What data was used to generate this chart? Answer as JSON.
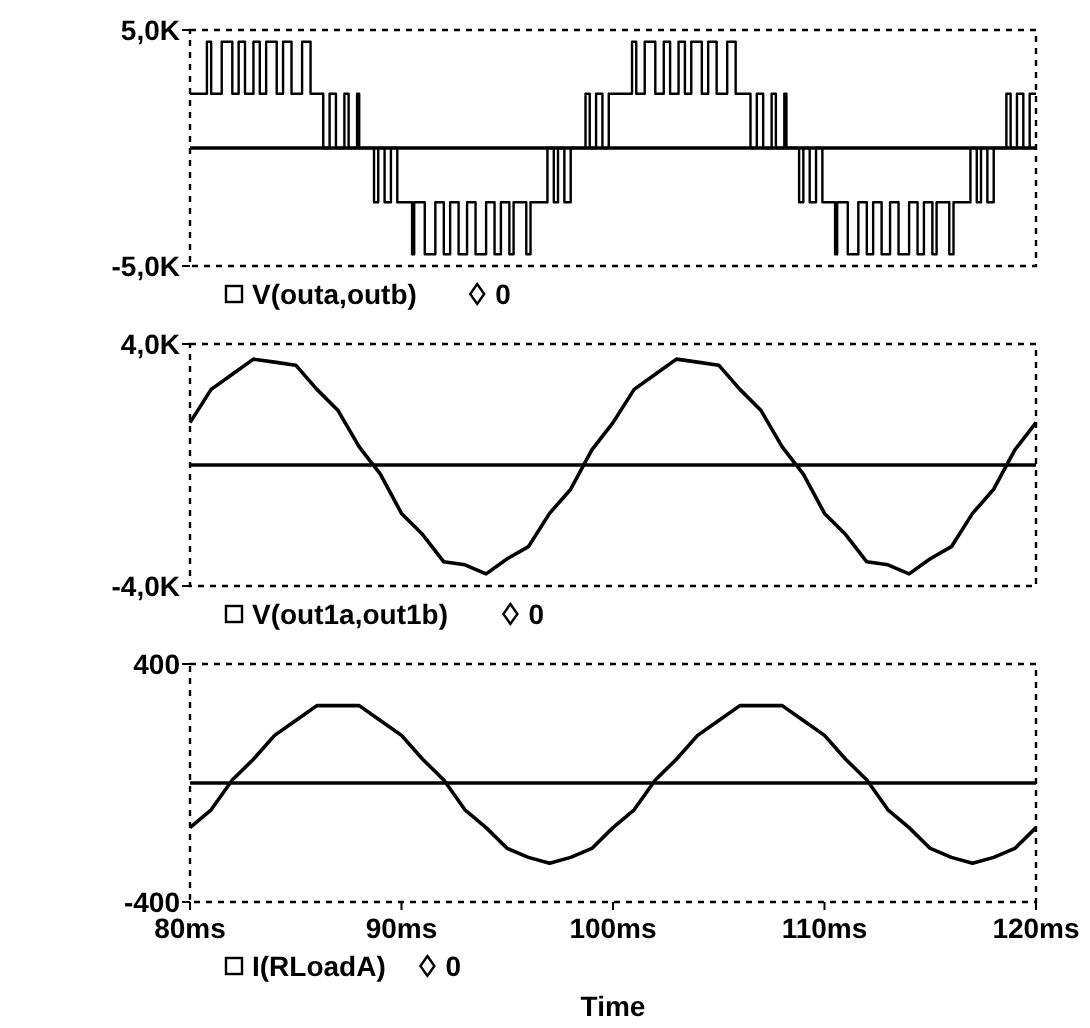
{
  "chart_data": [
    {
      "type": "line",
      "xlim": [
        80,
        120
      ],
      "ylim": [
        -5000,
        5000
      ],
      "yticks": [
        {
          "value": 5000,
          "label": "5,0K"
        },
        {
          "value": -5000,
          "label": "-5,0K"
        }
      ],
      "tick_labels": "y",
      "legend": "bottom",
      "series": [
        {
          "name": "V(outa,outb)",
          "type": "step",
          "color": "#000000",
          "x": [
            80,
            80.8,
            81.0,
            81.5,
            82.0,
            82.3,
            82.6,
            83.0,
            83.3,
            83.6,
            84.1,
            84.4,
            84.8,
            85.3,
            85.7,
            86.3,
            86.6,
            86.9,
            87.3,
            87.5,
            87.9,
            88.0,
            88.7,
            88.9,
            89.2,
            89.5,
            89.8,
            90.5,
            90.6,
            91.1,
            91.6,
            92.0,
            92.3,
            92.7,
            93.1,
            93.5,
            94.0,
            94.4,
            94.7,
            95.1,
            95.3,
            95.9,
            96.1,
            96.9,
            97.2,
            97.4,
            97.7,
            98.0,
            98.7,
            98.9,
            99.2,
            99.5,
            99.8,
            100.9,
            101.1,
            101.5,
            102.0,
            102.4,
            102.7,
            103.1,
            103.4,
            103.7,
            104.2,
            104.5,
            104.9,
            105.4,
            105.8,
            106.5,
            106.8,
            107.1,
            107.5,
            107.7,
            108.1,
            108.2,
            108.8,
            109.0,
            109.3,
            109.6,
            109.9,
            110.5,
            110.6,
            111.1,
            111.6,
            112.0,
            112.3,
            112.7,
            113.1,
            113.5,
            114.0,
            114.4,
            114.7,
            115.1,
            115.3,
            115.9,
            116.1,
            116.9,
            117.2,
            117.4,
            117.7,
            118.0,
            118.6,
            118.8,
            119.1,
            119.4,
            119.7,
            120
          ],
          "values": [
            2300,
            4500,
            2300,
            4500,
            2300,
            4500,
            2300,
            4500,
            2300,
            4500,
            2300,
            4500,
            2300,
            4500,
            2300,
            0,
            2300,
            0,
            2300,
            0,
            2300,
            0,
            -2300,
            0,
            -2300,
            0,
            -2300,
            -4500,
            -2300,
            -4500,
            -2300,
            -4500,
            -2300,
            -4500,
            -2300,
            -4500,
            -2300,
            -4500,
            -2300,
            -4500,
            -2300,
            -4500,
            -2300,
            0,
            -2300,
            0,
            -2300,
            0,
            2300,
            0,
            2300,
            0,
            2300,
            4500,
            2300,
            4500,
            2300,
            4500,
            2300,
            4500,
            2300,
            4500,
            2300,
            4500,
            2300,
            4500,
            2300,
            0,
            2300,
            0,
            2300,
            0,
            2300,
            0,
            -2300,
            0,
            -2300,
            0,
            -2300,
            -4500,
            -2300,
            -4500,
            -2300,
            -4500,
            -2300,
            -4500,
            -2300,
            -4500,
            -2300,
            -4500,
            -2300,
            -4500,
            -2300,
            -4500,
            -2300,
            0,
            -2300,
            0,
            -2300,
            0,
            2300,
            0,
            2300,
            0,
            2300,
            2300
          ]
        },
        {
          "name": "0",
          "type": "line",
          "color": "#000000",
          "x": [
            80,
            120
          ],
          "values": [
            0,
            0
          ]
        }
      ]
    },
    {
      "type": "line",
      "xlim": [
        80,
        120
      ],
      "ylim": [
        -4000,
        4000
      ],
      "yticks": [
        {
          "value": 4000,
          "label": "4,0K"
        },
        {
          "value": -4000,
          "label": "-4,0K"
        }
      ],
      "tick_labels": "y",
      "legend": "bottom",
      "series": [
        {
          "name": "V(out1a,out1b)",
          "type": "line",
          "color": "#000000",
          "x": [
            80,
            81,
            82,
            83,
            84,
            85,
            86,
            87,
            88,
            89,
            90,
            91,
            92,
            93,
            94,
            95,
            96,
            97,
            98,
            99,
            100,
            101,
            102,
            103,
            104,
            105,
            106,
            107,
            108,
            109,
            110,
            111,
            112,
            113,
            114,
            115,
            116,
            117,
            118,
            119,
            120
          ],
          "values": [
            1400,
            2500,
            3000,
            3500,
            3400,
            3300,
            2500,
            1800,
            600,
            -300,
            -1600,
            -2300,
            -3200,
            -3300,
            -3600,
            -3100,
            -2700,
            -1600,
            -800,
            500,
            1400,
            2500,
            3000,
            3500,
            3400,
            3300,
            2500,
            1800,
            600,
            -300,
            -1600,
            -2300,
            -3200,
            -3300,
            -3600,
            -3100,
            -2700,
            -1600,
            -800,
            500,
            1400
          ]
        },
        {
          "name": "0",
          "type": "line",
          "color": "#000000",
          "x": [
            80,
            120
          ],
          "values": [
            0,
            0
          ]
        }
      ]
    },
    {
      "type": "line",
      "xlim": [
        80,
        120
      ],
      "xticks": [
        {
          "value": 80,
          "label": "80ms"
        },
        {
          "value": 90,
          "label": "90ms"
        },
        {
          "value": 100,
          "label": "100ms"
        },
        {
          "value": 110,
          "label": "110ms"
        },
        {
          "value": 120,
          "label": "120ms"
        }
      ],
      "ylim": [
        -400,
        400
      ],
      "yticks": [
        400,
        -400
      ],
      "xlabel": "Time",
      "legend": "bottom",
      "series": [
        {
          "name": "I(RLoadA)",
          "type": "line",
          "color": "#000000",
          "x": [
            80,
            81,
            82,
            83,
            84,
            85,
            86,
            87,
            88,
            89,
            90,
            91,
            92,
            93,
            94,
            95,
            96,
            97,
            98,
            99,
            100,
            101,
            102,
            103,
            104,
            105,
            106,
            107,
            108,
            109,
            110,
            111,
            112,
            113,
            114,
            115,
            116,
            117,
            118,
            119,
            120
          ],
          "values": [
            -150,
            -90,
            10,
            80,
            160,
            210,
            260,
            260,
            260,
            210,
            160,
            80,
            10,
            -90,
            -150,
            -220,
            -250,
            -270,
            -250,
            -220,
            -150,
            -90,
            10,
            80,
            160,
            210,
            260,
            260,
            260,
            210,
            160,
            80,
            10,
            -90,
            -150,
            -220,
            -250,
            -270,
            -250,
            -220,
            -150
          ]
        },
        {
          "name": "0",
          "type": "line",
          "color": "#000000",
          "x": [
            80,
            120
          ],
          "values": [
            0,
            0
          ]
        }
      ]
    }
  ]
}
